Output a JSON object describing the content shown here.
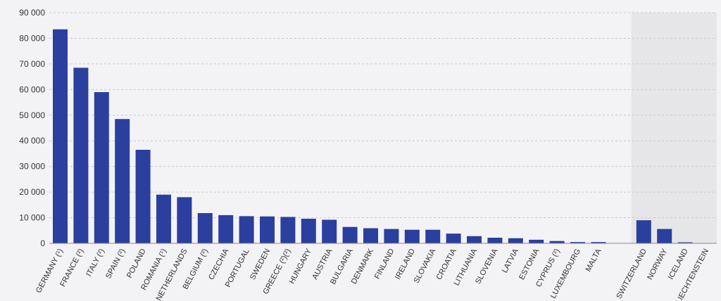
{
  "chart_data": {
    "type": "bar",
    "title": "",
    "xlabel": "",
    "ylabel": "",
    "ylim": [
      0,
      90000
    ],
    "yticks": [
      0,
      10000,
      20000,
      30000,
      40000,
      50000,
      60000,
      70000,
      80000,
      90000
    ],
    "ytick_labels": [
      "0",
      "10 000",
      "20 000",
      "30 000",
      "40 000",
      "50 000",
      "60 000",
      "70 000",
      "80 000",
      "90 000"
    ],
    "grid": true,
    "legend": "none",
    "bar_color": "#2b3f9e",
    "shaded_region_color": "#e6e6e9",
    "categories": [
      "GERMANY (¹)",
      "FRANCE (²)",
      "ITALY (²)",
      "SPAIN (²)",
      "POLAND",
      "ROMANIA (¹)",
      "NETHERLANDS",
      "BELGIUM (²)",
      "CZECHIA",
      "PORTUGAL",
      "SWEDEN",
      "GREECE (²)(²)",
      "HUNGARY",
      "AUSTRIA",
      "BULGARIA",
      "DENMARK",
      "FINLAND",
      "IRELAND",
      "SLOVAKIA",
      "CROATIA",
      "LITHUANIA",
      "SLOVENIA",
      "LATVIA",
      "ESTONIA",
      "CYPRUS (²)",
      "LUXEMBOURG",
      "MALTA",
      "SWITZERLAND",
      "NORWAY",
      "ICELAND",
      "LIECHTENSTEIN"
    ],
    "values": [
      83500,
      68500,
      59000,
      48500,
      36500,
      19000,
      18000,
      11800,
      11000,
      10600,
      10500,
      10300,
      9600,
      9200,
      6400,
      5900,
      5600,
      5300,
      5300,
      3800,
      2800,
      2200,
      2000,
      1400,
      900,
      500,
      500,
      9000,
      5600,
      400,
      0
    ],
    "group_break_after": 26
  }
}
